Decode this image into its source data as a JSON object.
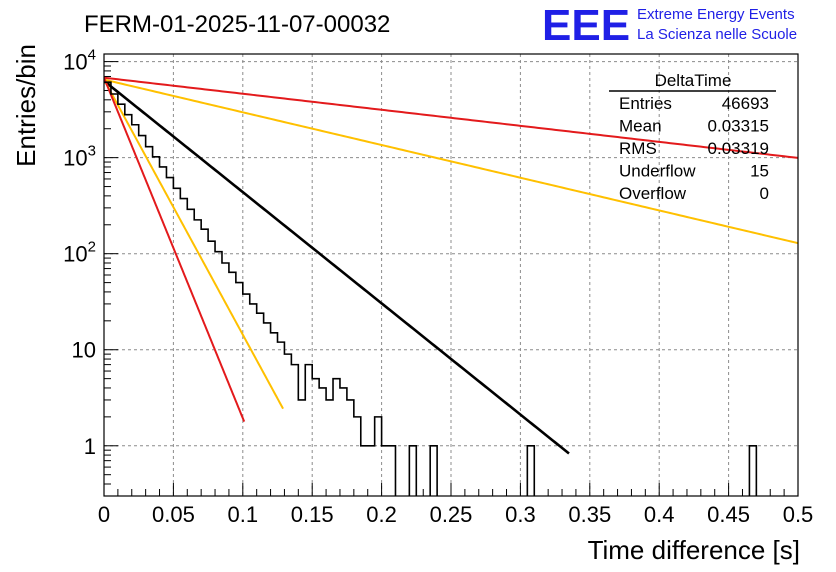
{
  "header": {
    "run_title": "FERM-01-2025-11-07-00032",
    "logo_text": "EEE",
    "logo_line1": "Extreme Energy Events",
    "logo_line2": "La Scienza nelle Scuole",
    "logo_color": "#1f1fe6"
  },
  "stats_box": {
    "title": "DeltaTime",
    "rows": [
      {
        "label": "Entries",
        "value": "46693"
      },
      {
        "label": "Mean",
        "value": "0.03315"
      },
      {
        "label": "RMS",
        "value": "0.03319"
      },
      {
        "label": "Underflow",
        "value": "15"
      },
      {
        "label": "Overflow",
        "value": "0"
      }
    ]
  },
  "chart_data": {
    "type": "line",
    "title": "FERM-01-2025-11-07-00032",
    "xlabel": "Time difference [s]",
    "ylabel": "Entries/bin",
    "xlim": [
      0,
      0.5
    ],
    "ylim": [
      0.3,
      12000
    ],
    "yscale": "log",
    "grid": true,
    "x_ticks": [
      0,
      0.05,
      0.1,
      0.15,
      0.2,
      0.25,
      0.3,
      0.35,
      0.4,
      0.45,
      0.5
    ],
    "x_tick_labels": [
      "0",
      "0.05",
      "0.1",
      "0.15",
      "0.2",
      "0.25",
      "0.3",
      "0.35",
      "0.4",
      "0.45",
      "0.5"
    ],
    "y_ticks": [
      {
        "value": 1,
        "base": "1",
        "exp": ""
      },
      {
        "value": 10,
        "base": "10",
        "exp": ""
      },
      {
        "value": 100,
        "base": "10",
        "exp": "2"
      },
      {
        "value": 1000,
        "base": "10",
        "exp": "3"
      },
      {
        "value": 10000,
        "base": "10",
        "exp": "4"
      }
    ],
    "histogram": {
      "name": "DeltaTime",
      "color": "#000000",
      "bin_width": 0.005,
      "x_start": 0,
      "counts": [
        6100,
        4600,
        3600,
        2800,
        2200,
        1700,
        1300,
        1020,
        800,
        620,
        480,
        375,
        290,
        225,
        180,
        135,
        105,
        80,
        64,
        50,
        38,
        30,
        24,
        19,
        15,
        12,
        9,
        7,
        3,
        7,
        5,
        4,
        3,
        5,
        4,
        3,
        2,
        1,
        1,
        2,
        1,
        1,
        0,
        0,
        1,
        0,
        0,
        1,
        0,
        0,
        0,
        0,
        0,
        0,
        0,
        0,
        0,
        0,
        0,
        0,
        0,
        1,
        0,
        0,
        0,
        0,
        0,
        0,
        0,
        0,
        0,
        0,
        0,
        0,
        0,
        0,
        0,
        0,
        0,
        0,
        0,
        0,
        0,
        0,
        0,
        0,
        0,
        0,
        0,
        0,
        0,
        0,
        0,
        1,
        0,
        0,
        0,
        0,
        0,
        0
      ]
    },
    "series": [
      {
        "name": "exponential fit",
        "color": "#000000",
        "amplitude": 6300,
        "tau": 0.0375,
        "x_range": [
          0,
          0.335
        ]
      },
      {
        "name": "red slow",
        "color": "#e31a1c",
        "amplitude": 6800,
        "tau": 0.26,
        "x_range": [
          0,
          0.5
        ]
      },
      {
        "name": "orange slow",
        "color": "#ffc000",
        "amplitude": 6500,
        "tau": 0.1275,
        "x_range": [
          0,
          0.5
        ]
      },
      {
        "name": "orange steep",
        "color": "#ffc000",
        "amplitude": 6500,
        "tau": 0.01635,
        "x_range": [
          0,
          0.129
        ]
      },
      {
        "name": "red steep",
        "color": "#e31a1c",
        "amplitude": 6800,
        "tau": 0.01225,
        "x_range": [
          0,
          0.101
        ]
      }
    ]
  }
}
